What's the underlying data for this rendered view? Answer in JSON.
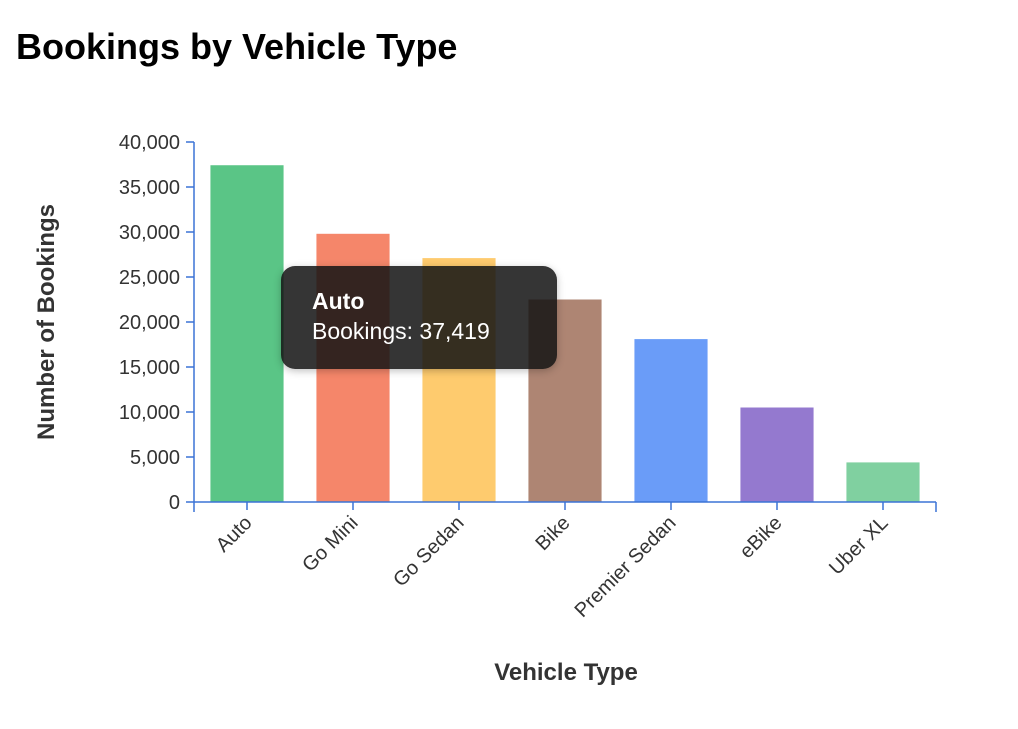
{
  "chart_data": {
    "type": "bar",
    "title": "Bookings by Vehicle Type",
    "xlabel": "Vehicle Type",
    "ylabel": "Number of Bookings",
    "categories": [
      "Auto",
      "Go Mini",
      "Go Sedan",
      "Bike",
      "Premier Sedan",
      "eBike",
      "Uber XL"
    ],
    "values": [
      37419,
      29800,
      27100,
      22500,
      18100,
      10500,
      4400
    ],
    "colors": [
      "#5ac586",
      "#f5866a",
      "#fecb6e",
      "#ae8573",
      "#6a9cf8",
      "#9479cf",
      "#80d0a0"
    ],
    "ylim": [
      0,
      40000
    ],
    "yticks": [
      0,
      5000,
      10000,
      15000,
      20000,
      25000,
      30000,
      35000,
      40000
    ],
    "ytick_labels": [
      "0",
      "5,000",
      "10,000",
      "15,000",
      "20,000",
      "25,000",
      "30,000",
      "35,000",
      "40,000"
    ],
    "grid": false,
    "legend": "none",
    "axis_color": "#3b73d6"
  },
  "tooltip": {
    "title": "Auto",
    "body": "Bookings: 37,419"
  }
}
